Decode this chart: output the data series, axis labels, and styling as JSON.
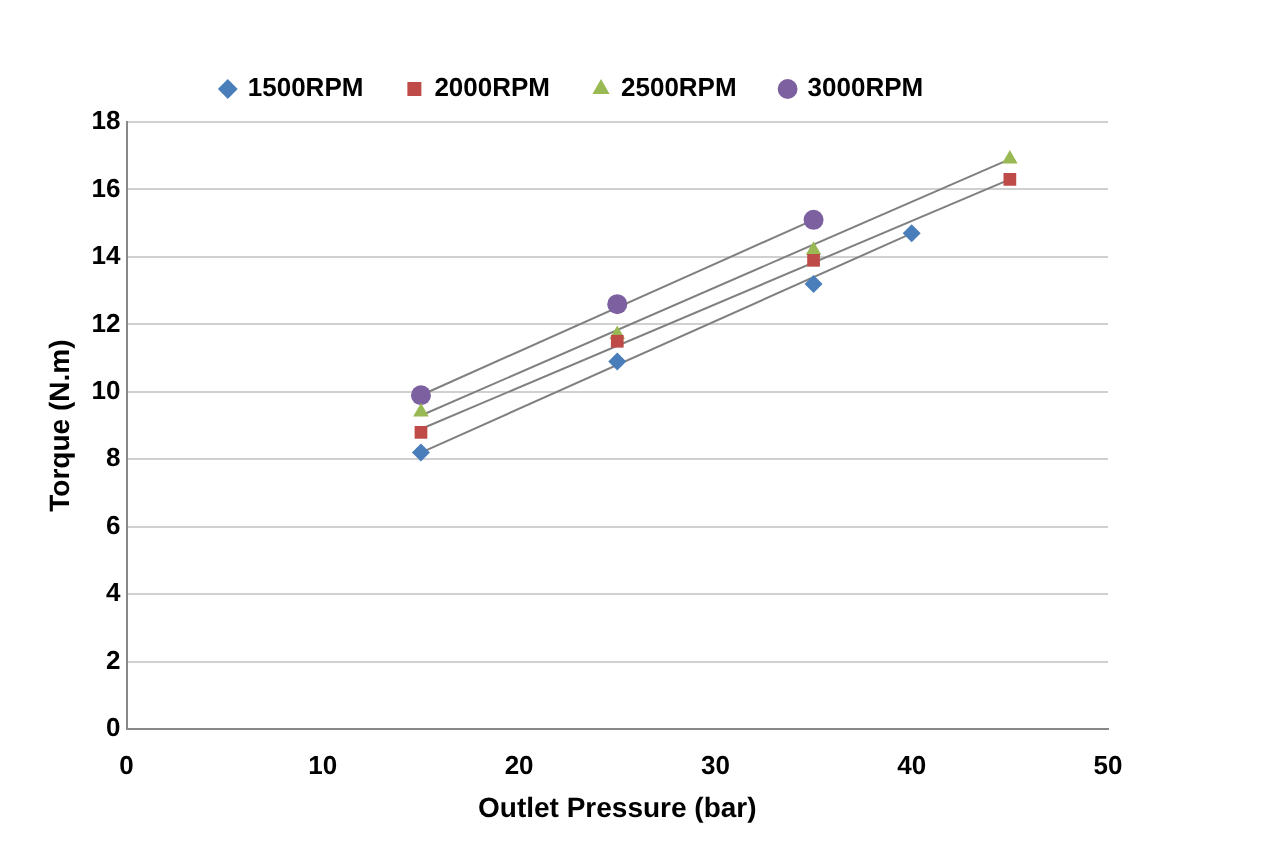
{
  "chart_data": {
    "type": "scatter",
    "xlabel": "Outlet Pressure (bar)",
    "ylabel": "Torque (N.m)",
    "xlim": [
      0,
      50
    ],
    "xticks": [
      0,
      10,
      20,
      30,
      40,
      50
    ],
    "ylim": [
      0,
      18
    ],
    "yticks": [
      0,
      2,
      4,
      6,
      8,
      10,
      12,
      14,
      16,
      18
    ],
    "grid": "y",
    "legend": "top",
    "series": [
      {
        "name": "1500RPM",
        "color": "#4a7ebb",
        "marker": "diamond",
        "x": [
          15,
          25,
          35,
          40
        ],
        "values": [
          8.2,
          10.9,
          13.2,
          14.7
        ]
      },
      {
        "name": "2000RPM",
        "color": "#be4b48",
        "marker": "square",
        "x": [
          15,
          25,
          35,
          45
        ],
        "values": [
          8.8,
          11.5,
          13.9,
          16.3
        ]
      },
      {
        "name": "2500RPM",
        "color": "#98b954",
        "marker": "triangle",
        "x": [
          15,
          25,
          35,
          45
        ],
        "values": [
          9.4,
          11.7,
          14.2,
          16.9
        ]
      },
      {
        "name": "3000RPM",
        "color": "#7d60a0",
        "marker": "circle",
        "x": [
          15,
          25,
          35
        ],
        "values": [
          9.9,
          12.6,
          15.1
        ]
      },
      {
        "type": "line",
        "color": "#808080",
        "marker": "none",
        "x": [
          15,
          40
        ],
        "values": [
          8.2,
          14.7
        ]
      },
      {
        "type": "line",
        "color": "#808080",
        "marker": "none",
        "x": [
          15,
          45
        ],
        "values": [
          8.9,
          16.3
        ]
      },
      {
        "type": "line",
        "color": "#808080",
        "marker": "none",
        "x": [
          15,
          45
        ],
        "values": [
          9.3,
          16.9
        ]
      },
      {
        "type": "line",
        "color": "#808080",
        "marker": "none",
        "x": [
          15,
          35
        ],
        "values": [
          9.9,
          15.1
        ]
      }
    ]
  }
}
